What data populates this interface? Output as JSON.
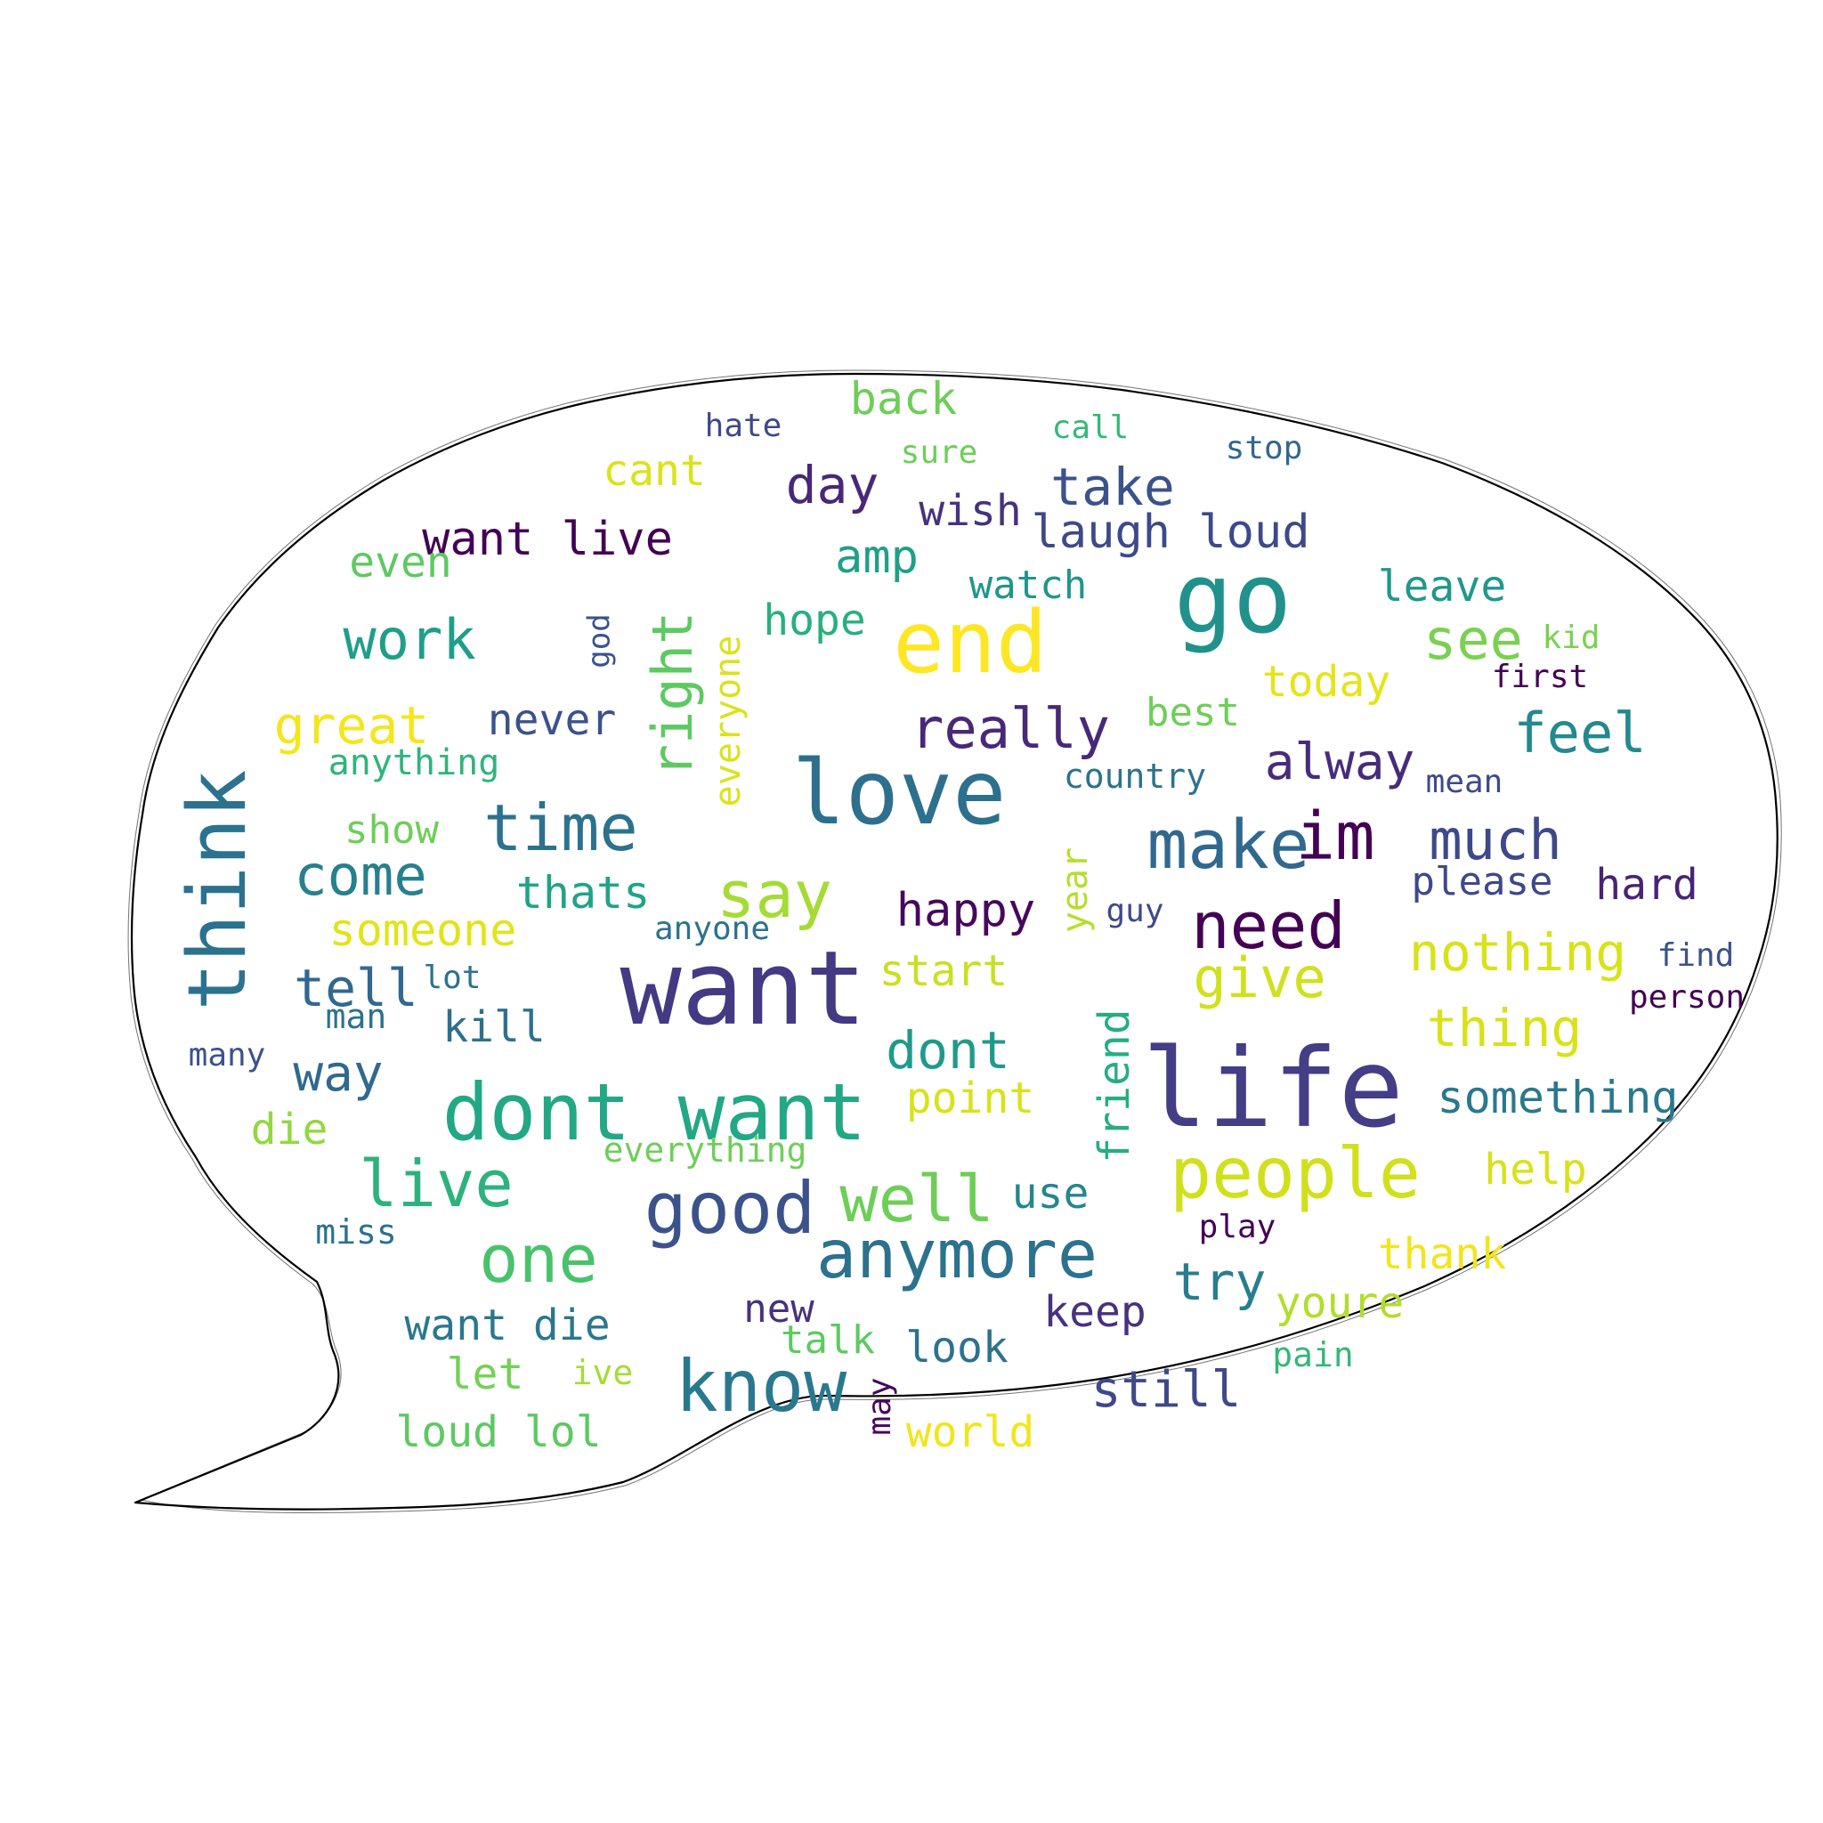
{
  "words": [
    {
      "text": "want",
      "color": "#443983"
    },
    {
      "text": "life",
      "color": "#433e85"
    },
    {
      "text": "go",
      "color": "#21918c"
    },
    {
      "text": "love",
      "color": "#2d708e"
    },
    {
      "text": "dont want",
      "color": "#22a884"
    },
    {
      "text": "end",
      "color": "#fde725"
    },
    {
      "text": "think",
      "color": "#2c728e"
    },
    {
      "text": "people",
      "color": "#d0e11c"
    },
    {
      "text": "make",
      "color": "#31688e"
    },
    {
      "text": "know",
      "color": "#2a788e"
    },
    {
      "text": "good",
      "color": "#3b528b"
    },
    {
      "text": "anymore",
      "color": "#2c728e"
    },
    {
      "text": "one",
      "color": "#4ac16d"
    },
    {
      "text": "time",
      "color": "#2c728e"
    },
    {
      "text": "need",
      "color": "#440154"
    },
    {
      "text": "say",
      "color": "#a5db36"
    },
    {
      "text": "well",
      "color": "#6ece58"
    },
    {
      "text": "live",
      "color": "#2db27d"
    },
    {
      "text": "im",
      "color": "#440154"
    },
    {
      "text": "right",
      "color": "#5ec962"
    },
    {
      "text": "really",
      "color": "#482878"
    },
    {
      "text": "see",
      "color": "#7ad151"
    },
    {
      "text": "work",
      "color": "#1f9e89"
    },
    {
      "text": "feel",
      "color": "#23898e"
    },
    {
      "text": "much",
      "color": "#3e4989"
    },
    {
      "text": "give",
      "color": "#d0e11c"
    },
    {
      "text": "nothing",
      "color": "#d8e219"
    },
    {
      "text": "thing",
      "color": "#d8e219"
    },
    {
      "text": "come",
      "color": "#27808e"
    },
    {
      "text": "take",
      "color": "#3b528b"
    },
    {
      "text": "great",
      "color": "#f4e61e"
    },
    {
      "text": "friend",
      "color": "#27ad81"
    },
    {
      "text": "day",
      "color": "#482878"
    },
    {
      "text": "alway",
      "color": "#472c7a"
    },
    {
      "text": "happy",
      "color": "#46085c"
    },
    {
      "text": "laugh loud",
      "color": "#3e4989"
    },
    {
      "text": "dont",
      "color": "#1f9a8a"
    },
    {
      "text": "tell",
      "color": "#31688e"
    },
    {
      "text": "try",
      "color": "#287d8e"
    },
    {
      "text": "still",
      "color": "#3e4989"
    },
    {
      "text": "way",
      "color": "#31688e"
    },
    {
      "text": "everyone",
      "color": "#dae319"
    },
    {
      "text": "something",
      "color": "#2a788e"
    },
    {
      "text": "want live",
      "color": "#440154"
    },
    {
      "text": "amp",
      "color": "#1fa088"
    },
    {
      "text": "thats",
      "color": "#20a386"
    },
    {
      "text": "someone",
      "color": "#e2e418"
    },
    {
      "text": "cant",
      "color": "#dae319"
    },
    {
      "text": "back",
      "color": "#6ece58"
    },
    {
      "text": "hope",
      "color": "#29af7f"
    },
    {
      "text": "today",
      "color": "#e5e419"
    },
    {
      "text": "never",
      "color": "#3b528b"
    },
    {
      "text": "start",
      "color": "#c8e020"
    },
    {
      "text": "point",
      "color": "#d8e219"
    },
    {
      "text": "die",
      "color": "#93d741"
    },
    {
      "text": "leave",
      "color": "#1f988b"
    },
    {
      "text": "thank",
      "color": "#f1e51d"
    },
    {
      "text": "want die",
      "color": "#2a788e"
    },
    {
      "text": "kill",
      "color": "#2d708e"
    },
    {
      "text": "loud lol",
      "color": "#5ec962"
    },
    {
      "text": "look",
      "color": "#2c728e"
    },
    {
      "text": "keep",
      "color": "#46327e"
    },
    {
      "text": "youre",
      "color": "#b2dd2d"
    },
    {
      "text": "help",
      "color": "#d8e219"
    },
    {
      "text": "wish",
      "color": "#46327e"
    },
    {
      "text": "best",
      "color": "#6ece58"
    },
    {
      "text": "watch",
      "color": "#1f968b"
    },
    {
      "text": "even",
      "color": "#5ec962"
    },
    {
      "text": "hard",
      "color": "#482475"
    },
    {
      "text": "please",
      "color": "#3e4989"
    },
    {
      "text": "use",
      "color": "#24868e"
    },
    {
      "text": "year",
      "color": "#b5de2b"
    },
    {
      "text": "show",
      "color": "#6ece58"
    },
    {
      "text": "new",
      "color": "#46327e"
    },
    {
      "text": "world",
      "color": "#f1e51d"
    },
    {
      "text": "let",
      "color": "#73d056"
    },
    {
      "text": "talk",
      "color": "#5ec962"
    },
    {
      "text": "anything",
      "color": "#2fb47c"
    },
    {
      "text": "everything",
      "color": "#6ece58"
    },
    {
      "text": "country",
      "color": "#2c728e"
    },
    {
      "text": "mean",
      "color": "#3e4989"
    },
    {
      "text": "anyone",
      "color": "#2c728e"
    },
    {
      "text": "guy",
      "color": "#3e4989"
    },
    {
      "text": "first",
      "color": "#440154"
    },
    {
      "text": "find",
      "color": "#3b528b"
    },
    {
      "text": "person",
      "color": "#440154"
    },
    {
      "text": "play",
      "color": "#440154"
    },
    {
      "text": "pain",
      "color": "#35b779"
    },
    {
      "text": "miss",
      "color": "#2d708e"
    },
    {
      "text": "man",
      "color": "#2c728e"
    },
    {
      "text": "many",
      "color": "#3b528b"
    },
    {
      "text": "lot",
      "color": "#2c728e"
    },
    {
      "text": "god",
      "color": "#3b528b"
    },
    {
      "text": "kid",
      "color": "#7ad151"
    },
    {
      "text": "hate",
      "color": "#3e4989"
    },
    {
      "text": "sure",
      "color": "#6ece58"
    },
    {
      "text": "call",
      "color": "#35b779"
    },
    {
      "text": "stop",
      "color": "#31688e"
    },
    {
      "text": "ive",
      "color": "#a5db36"
    },
    {
      "text": "may",
      "color": "#46085c"
    }
  ]
}
